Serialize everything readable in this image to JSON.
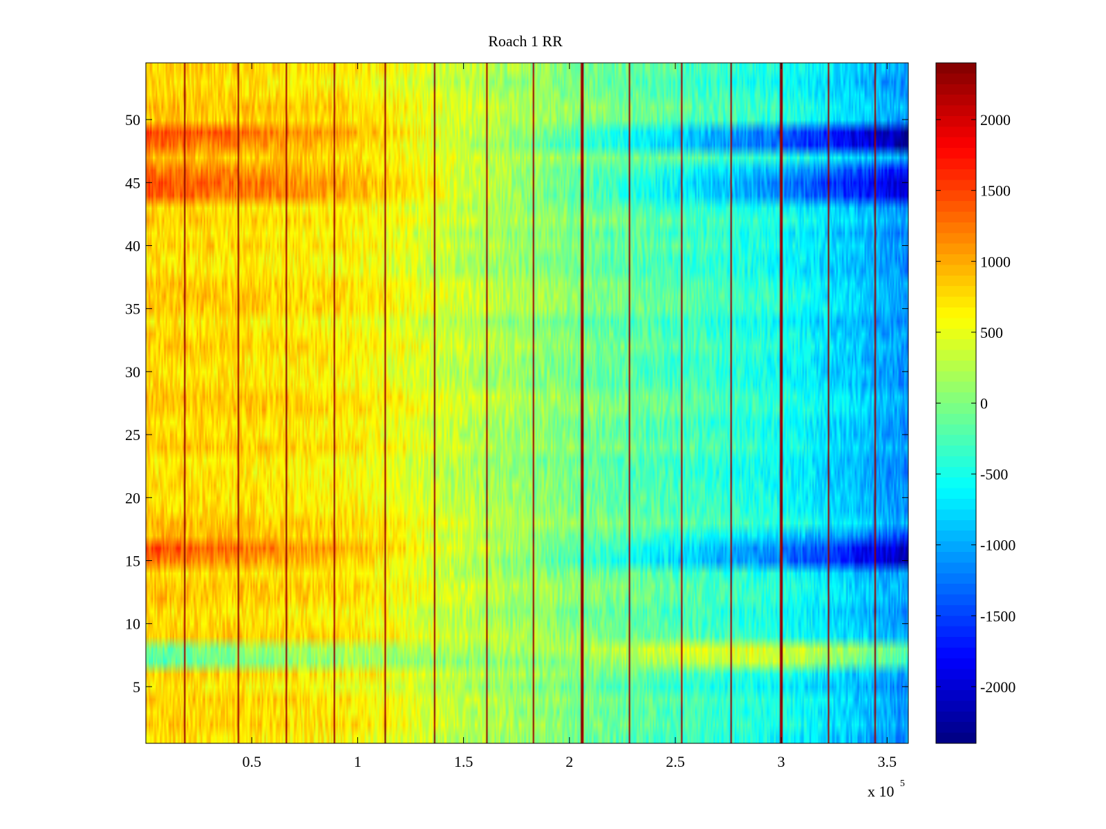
{
  "chart_data": {
    "type": "heatmap",
    "title": "Roach 1 RR",
    "xlabel": "",
    "ylabel": "",
    "x_range": [
      0,
      360000
    ],
    "y_range": [
      0.5,
      54.5
    ],
    "n_rows": 54,
    "x_exponent_label": "x 10",
    "x_exponent": "5",
    "x_ticks": [
      {
        "value": 50000,
        "label": "0.5"
      },
      {
        "value": 100000,
        "label": "1"
      },
      {
        "value": 150000,
        "label": "1.5"
      },
      {
        "value": 200000,
        "label": "2"
      },
      {
        "value": 250000,
        "label": "2.5"
      },
      {
        "value": 300000,
        "label": "3"
      },
      {
        "value": 350000,
        "label": "3.5"
      }
    ],
    "y_ticks": [
      {
        "value": 5,
        "label": "5"
      },
      {
        "value": 10,
        "label": "10"
      },
      {
        "value": 15,
        "label": "15"
      },
      {
        "value": 20,
        "label": "20"
      },
      {
        "value": 25,
        "label": "25"
      },
      {
        "value": 30,
        "label": "30"
      },
      {
        "value": 35,
        "label": "35"
      },
      {
        "value": 40,
        "label": "40"
      },
      {
        "value": 45,
        "label": "45"
      },
      {
        "value": 50,
        "label": "50"
      }
    ],
    "colorbar": {
      "colormap": "jet",
      "range": [
        -2400,
        2400
      ],
      "ticks": [
        {
          "value": 2000,
          "label": "2000"
        },
        {
          "value": 1500,
          "label": "1500"
        },
        {
          "value": 1000,
          "label": "1000"
        },
        {
          "value": 500,
          "label": "500"
        },
        {
          "value": 0,
          "label": "0"
        },
        {
          "value": -500,
          "label": "-500"
        },
        {
          "value": -1000,
          "label": "-1000"
        },
        {
          "value": -1500,
          "label": "-1500"
        },
        {
          "value": -2000,
          "label": "-2000"
        }
      ]
    },
    "spike_columns_x": [
      18500,
      43500,
      66500,
      89000,
      113000,
      136500,
      161000,
      183000,
      206000,
      228500,
      253000,
      276500,
      300000,
      322500,
      344500
    ],
    "column_profile": {
      "x": [
        0,
        50000,
        100000,
        150000,
        200000,
        250000,
        300000,
        330000,
        360000
      ],
      "value": [
        800,
        750,
        650,
        300,
        0,
        -250,
        -500,
        -800,
        -1100
      ]
    },
    "row_offsets": [
      {
        "row": 48,
        "value": 600,
        "fade_x": 0
      },
      {
        "row": 49,
        "value": 700,
        "fade_x": 0
      },
      {
        "row": 44,
        "value": 550,
        "fade_x": 0
      },
      {
        "row": 45,
        "value": 600,
        "fade_x": 0
      },
      {
        "row": 46,
        "value": 400,
        "fade_x": 0
      },
      {
        "row": 15,
        "value": 550,
        "fade_x": 0
      },
      {
        "row": 16,
        "value": 600,
        "fade_x": 0
      },
      {
        "row": 17,
        "value": 200,
        "fade_x": 0
      },
      {
        "row": 7,
        "value": -900,
        "fade_x": 0
      },
      {
        "row": 8,
        "value": -1000,
        "fade_x": 0
      }
    ],
    "noise_amplitude": 250
  }
}
